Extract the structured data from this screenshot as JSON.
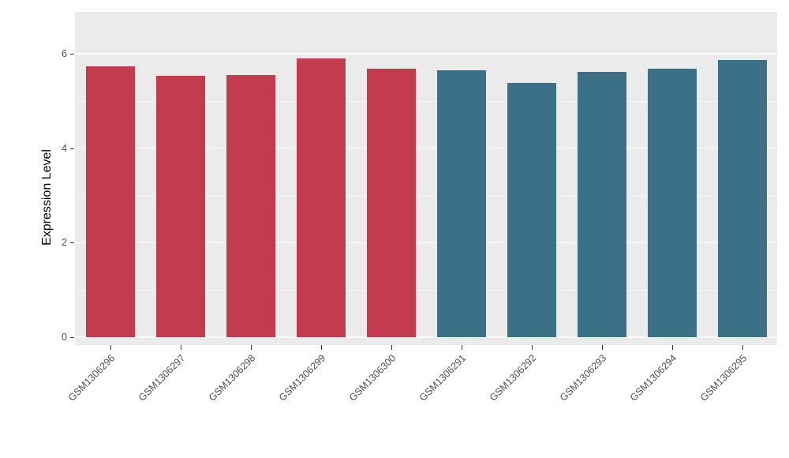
{
  "chart_data": {
    "type": "bar",
    "title": "",
    "xlabel": "",
    "ylabel": "Expression Level",
    "ylim": [
      0,
      6
    ],
    "yticks": [
      0,
      2,
      4,
      6
    ],
    "yticks_minor": [
      1,
      3,
      5
    ],
    "grid": true,
    "legend": null,
    "plot_bg_color": "#EBEBEB",
    "grid_color": "#FFFFFF",
    "group_colors": {
      "group1": "#C23B4F",
      "group2": "#3A7186"
    },
    "categories": [
      "GSM1306296",
      "GSM1306297",
      "GSM1306298",
      "GSM1306299",
      "GSM1306300",
      "GSM1306291",
      "GSM1306292",
      "GSM1306293",
      "GSM1306294",
      "GSM1306295"
    ],
    "values": [
      5.73,
      5.54,
      5.55,
      5.9,
      5.68,
      5.65,
      5.38,
      5.62,
      5.68,
      5.86
    ],
    "bar_colors": [
      "#C23B4F",
      "#C23B4F",
      "#C23B4F",
      "#C23B4F",
      "#C23B4F",
      "#3A7186",
      "#3A7186",
      "#3A7186",
      "#3A7186",
      "#3A7186"
    ]
  }
}
